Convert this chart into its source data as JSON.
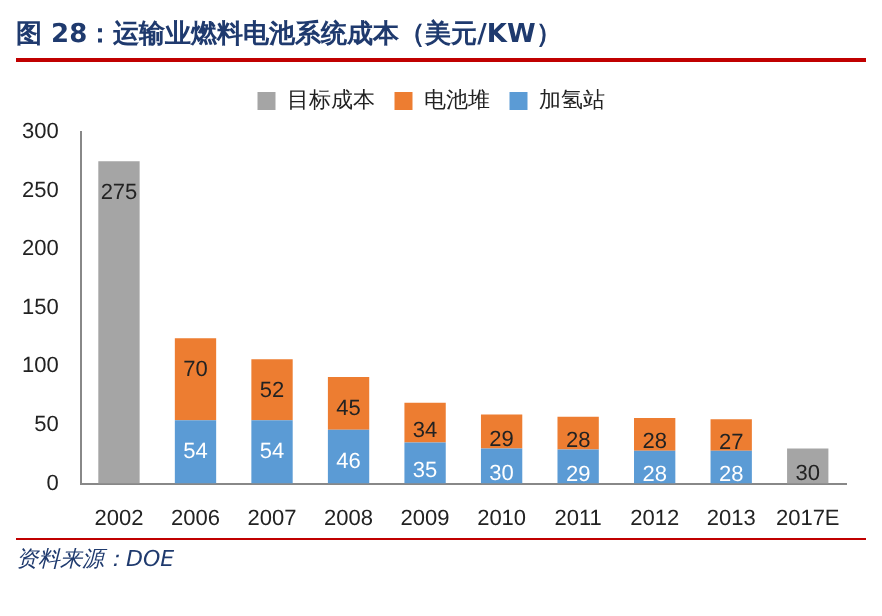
{
  "chart_data": {
    "type": "bar",
    "title": "图 28：运输业燃料电池系统成本（美元/KW）",
    "categories": [
      "2002",
      "2006",
      "2007",
      "2008",
      "2009",
      "2010",
      "2011",
      "2012",
      "2013",
      "2017E"
    ],
    "series": [
      {
        "name": "加氢站",
        "color": "#5b9bd5",
        "values": [
          null,
          54,
          54,
          46,
          35,
          30,
          29,
          28,
          28,
          null
        ]
      },
      {
        "name": "电池堆",
        "color": "#ed7d31",
        "values": [
          null,
          70,
          52,
          45,
          34,
          29,
          28,
          28,
          27,
          null
        ]
      },
      {
        "name": "目标成本",
        "color": "#a5a5a5",
        "values": [
          275,
          null,
          null,
          null,
          null,
          null,
          null,
          null,
          null,
          30
        ]
      }
    ],
    "stacked": true,
    "ylim": [
      0,
      300
    ],
    "yticks": [
      0,
      50,
      100,
      150,
      200,
      250,
      300
    ],
    "grid": false,
    "legend": "top",
    "data_labels": true,
    "annotations": [
      "资料来源：DOE"
    ]
  }
}
